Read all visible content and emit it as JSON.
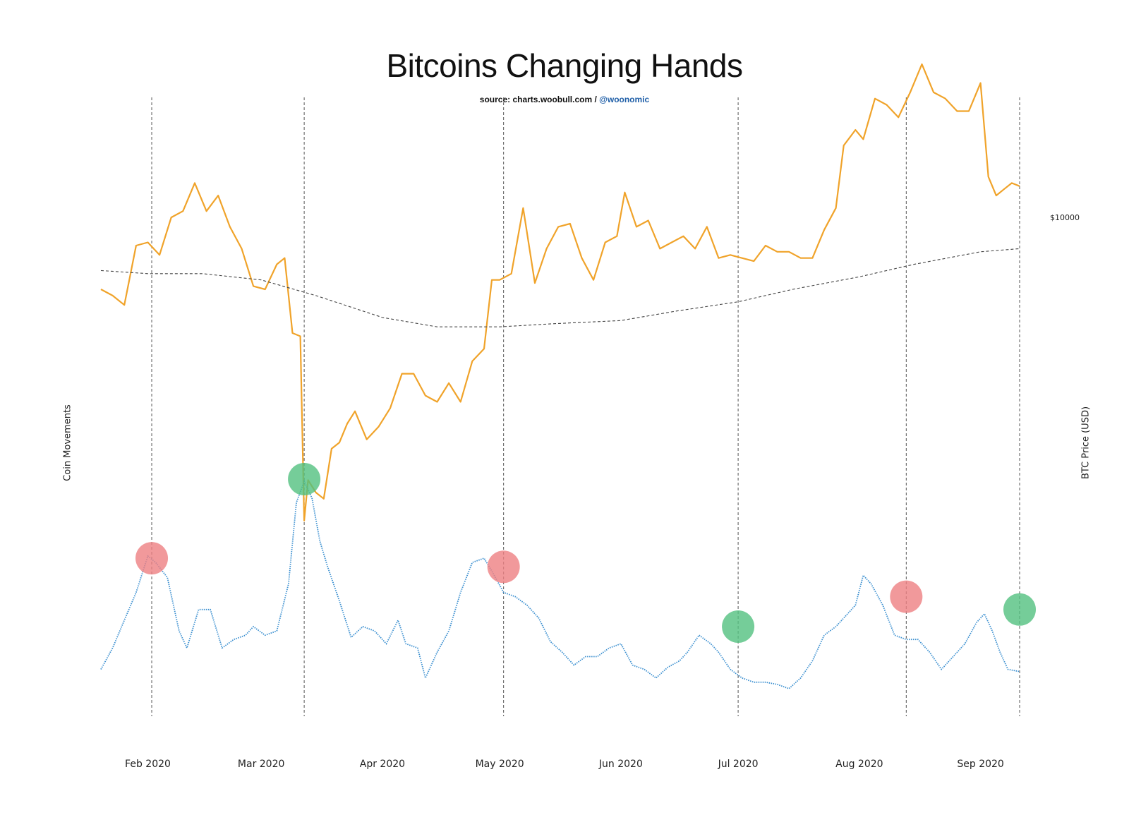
{
  "chart_data": {
    "type": "line",
    "title": "Bitcoins Changing Hands",
    "source_prefix": "source: charts.woobull.com / ",
    "source_handle": "@woonomic",
    "ylabel_left": "Coin Movements",
    "ylabel_right": "BTC Price (USD)",
    "y_right_ticks": [
      {
        "value": 10000,
        "label": "$10000"
      }
    ],
    "x_ticks": [
      {
        "date": "2020-02-01",
        "label": "Feb 2020"
      },
      {
        "date": "2020-03-01",
        "label": "Mar 2020"
      },
      {
        "date": "2020-04-01",
        "label": "Apr 2020"
      },
      {
        "date": "2020-05-01",
        "label": "May 2020"
      },
      {
        "date": "2020-06-01",
        "label": "Jun 2020"
      },
      {
        "date": "2020-07-01",
        "label": "Jul 2020"
      },
      {
        "date": "2020-08-01",
        "label": "Aug 2020"
      },
      {
        "date": "2020-09-01",
        "label": "Sep 2020"
      }
    ],
    "x_range": [
      "2020-01-20",
      "2020-09-11"
    ],
    "grid": false,
    "colors": {
      "price": "#f0a32a",
      "moving_average": "#444444",
      "coin_movements": "#3a8fd0",
      "marker_red": "#ee7f82",
      "marker_green": "#52c07f",
      "vline": "#555555"
    },
    "series": [
      {
        "key": "price",
        "axis": "right",
        "y_range": [
          4700,
          12600
        ],
        "points": [
          [
            "2020-01-20",
            8650
          ],
          [
            "2020-01-23",
            8550
          ],
          [
            "2020-01-26",
            8400
          ],
          [
            "2020-01-29",
            9350
          ],
          [
            "2020-02-01",
            9400
          ],
          [
            "2020-02-04",
            9200
          ],
          [
            "2020-02-07",
            9800
          ],
          [
            "2020-02-10",
            9900
          ],
          [
            "2020-02-13",
            10350
          ],
          [
            "2020-02-16",
            9900
          ],
          [
            "2020-02-19",
            10150
          ],
          [
            "2020-02-22",
            9650
          ],
          [
            "2020-02-25",
            9300
          ],
          [
            "2020-02-28",
            8700
          ],
          [
            "2020-03-02",
            8650
          ],
          [
            "2020-03-05",
            9050
          ],
          [
            "2020-03-07",
            9150
          ],
          [
            "2020-03-09",
            7950
          ],
          [
            "2020-03-11",
            7900
          ],
          [
            "2020-03-12",
            4950
          ],
          [
            "2020-03-13",
            5600
          ],
          [
            "2020-03-15",
            5400
          ],
          [
            "2020-03-17",
            5300
          ],
          [
            "2020-03-19",
            6100
          ],
          [
            "2020-03-21",
            6200
          ],
          [
            "2020-03-23",
            6500
          ],
          [
            "2020-03-25",
            6700
          ],
          [
            "2020-03-28",
            6250
          ],
          [
            "2020-03-31",
            6450
          ],
          [
            "2020-04-03",
            6750
          ],
          [
            "2020-04-06",
            7300
          ],
          [
            "2020-04-09",
            7300
          ],
          [
            "2020-04-12",
            6950
          ],
          [
            "2020-04-15",
            6850
          ],
          [
            "2020-04-18",
            7150
          ],
          [
            "2020-04-21",
            6850
          ],
          [
            "2020-04-24",
            7500
          ],
          [
            "2020-04-27",
            7700
          ],
          [
            "2020-04-29",
            8800
          ],
          [
            "2020-05-01",
            8800
          ],
          [
            "2020-05-04",
            8900
          ],
          [
            "2020-05-07",
            9950
          ],
          [
            "2020-05-10",
            8750
          ],
          [
            "2020-05-13",
            9300
          ],
          [
            "2020-05-16",
            9650
          ],
          [
            "2020-05-19",
            9700
          ],
          [
            "2020-05-22",
            9150
          ],
          [
            "2020-05-25",
            8800
          ],
          [
            "2020-05-28",
            9400
          ],
          [
            "2020-05-31",
            9500
          ],
          [
            "2020-06-02",
            10200
          ],
          [
            "2020-06-05",
            9650
          ],
          [
            "2020-06-08",
            9750
          ],
          [
            "2020-06-11",
            9300
          ],
          [
            "2020-06-14",
            9400
          ],
          [
            "2020-06-17",
            9500
          ],
          [
            "2020-06-20",
            9300
          ],
          [
            "2020-06-23",
            9650
          ],
          [
            "2020-06-26",
            9150
          ],
          [
            "2020-06-29",
            9200
          ],
          [
            "2020-07-02",
            9150
          ],
          [
            "2020-07-05",
            9100
          ],
          [
            "2020-07-08",
            9350
          ],
          [
            "2020-07-11",
            9250
          ],
          [
            "2020-07-14",
            9250
          ],
          [
            "2020-07-17",
            9150
          ],
          [
            "2020-07-20",
            9150
          ],
          [
            "2020-07-23",
            9600
          ],
          [
            "2020-07-26",
            9950
          ],
          [
            "2020-07-28",
            10950
          ],
          [
            "2020-07-31",
            11200
          ],
          [
            "2020-08-02",
            11050
          ],
          [
            "2020-08-05",
            11700
          ],
          [
            "2020-08-08",
            11600
          ],
          [
            "2020-08-11",
            11400
          ],
          [
            "2020-08-14",
            11800
          ],
          [
            "2020-08-17",
            12250
          ],
          [
            "2020-08-20",
            11800
          ],
          [
            "2020-08-23",
            11700
          ],
          [
            "2020-08-26",
            11500
          ],
          [
            "2020-08-29",
            11500
          ],
          [
            "2020-09-01",
            11950
          ],
          [
            "2020-09-03",
            10450
          ],
          [
            "2020-09-05",
            10150
          ],
          [
            "2020-09-07",
            10250
          ],
          [
            "2020-09-09",
            10350
          ],
          [
            "2020-09-11",
            10300
          ]
        ]
      },
      {
        "key": "moving_average",
        "axis": "right",
        "y_range": [
          4700,
          12600
        ],
        "points": [
          [
            "2020-01-20",
            8950
          ],
          [
            "2020-02-01",
            8900
          ],
          [
            "2020-02-15",
            8900
          ],
          [
            "2020-03-01",
            8800
          ],
          [
            "2020-03-15",
            8550
          ],
          [
            "2020-04-01",
            8200
          ],
          [
            "2020-04-15",
            8050
          ],
          [
            "2020-05-01",
            8050
          ],
          [
            "2020-05-15",
            8100
          ],
          [
            "2020-06-01",
            8150
          ],
          [
            "2020-06-15",
            8300
          ],
          [
            "2020-07-01",
            8450
          ],
          [
            "2020-07-15",
            8650
          ],
          [
            "2020-08-01",
            8850
          ],
          [
            "2020-08-15",
            9050
          ],
          [
            "2020-09-01",
            9250
          ],
          [
            "2020-09-11",
            9300
          ]
        ]
      },
      {
        "key": "coin_movements",
        "axis": "left",
        "y_range": [
          0,
          100
        ],
        "points": [
          [
            "2020-01-20",
            12
          ],
          [
            "2020-01-23",
            22
          ],
          [
            "2020-01-26",
            35
          ],
          [
            "2020-01-29",
            48
          ],
          [
            "2020-02-01",
            65
          ],
          [
            "2020-02-03",
            62
          ],
          [
            "2020-02-06",
            55
          ],
          [
            "2020-02-09",
            30
          ],
          [
            "2020-02-11",
            22
          ],
          [
            "2020-02-14",
            40
          ],
          [
            "2020-02-17",
            40
          ],
          [
            "2020-02-20",
            22
          ],
          [
            "2020-02-23",
            26
          ],
          [
            "2020-02-26",
            28
          ],
          [
            "2020-02-28",
            32
          ],
          [
            "2020-03-02",
            28
          ],
          [
            "2020-03-05",
            30
          ],
          [
            "2020-03-08",
            52
          ],
          [
            "2020-03-10",
            90
          ],
          [
            "2020-03-12",
            100
          ],
          [
            "2020-03-14",
            92
          ],
          [
            "2020-03-16",
            72
          ],
          [
            "2020-03-18",
            60
          ],
          [
            "2020-03-21",
            44
          ],
          [
            "2020-03-24",
            27
          ],
          [
            "2020-03-27",
            32
          ],
          [
            "2020-03-30",
            30
          ],
          [
            "2020-04-02",
            24
          ],
          [
            "2020-04-05",
            35
          ],
          [
            "2020-04-07",
            24
          ],
          [
            "2020-04-10",
            22
          ],
          [
            "2020-04-12",
            8
          ],
          [
            "2020-04-15",
            20
          ],
          [
            "2020-04-18",
            30
          ],
          [
            "2020-04-21",
            48
          ],
          [
            "2020-04-24",
            62
          ],
          [
            "2020-04-27",
            64
          ],
          [
            "2020-04-29",
            58
          ],
          [
            "2020-05-02",
            48
          ],
          [
            "2020-05-05",
            46
          ],
          [
            "2020-05-08",
            42
          ],
          [
            "2020-05-11",
            36
          ],
          [
            "2020-05-14",
            25
          ],
          [
            "2020-05-17",
            20
          ],
          [
            "2020-05-20",
            14
          ],
          [
            "2020-05-23",
            18
          ],
          [
            "2020-05-26",
            18
          ],
          [
            "2020-05-29",
            22
          ],
          [
            "2020-06-01",
            24
          ],
          [
            "2020-06-04",
            14
          ],
          [
            "2020-06-07",
            12
          ],
          [
            "2020-06-10",
            8
          ],
          [
            "2020-06-13",
            13
          ],
          [
            "2020-06-16",
            16
          ],
          [
            "2020-06-18",
            20
          ],
          [
            "2020-06-21",
            28
          ],
          [
            "2020-06-24",
            24
          ],
          [
            "2020-06-26",
            20
          ],
          [
            "2020-06-29",
            12
          ],
          [
            "2020-07-02",
            8
          ],
          [
            "2020-07-05",
            6
          ],
          [
            "2020-07-08",
            6
          ],
          [
            "2020-07-11",
            5
          ],
          [
            "2020-07-14",
            3
          ],
          [
            "2020-07-17",
            8
          ],
          [
            "2020-07-20",
            16
          ],
          [
            "2020-07-23",
            28
          ],
          [
            "2020-07-26",
            32
          ],
          [
            "2020-07-28",
            36
          ],
          [
            "2020-07-31",
            42
          ],
          [
            "2020-08-02",
            56
          ],
          [
            "2020-08-04",
            52
          ],
          [
            "2020-08-07",
            42
          ],
          [
            "2020-08-10",
            28
          ],
          [
            "2020-08-13",
            26
          ],
          [
            "2020-08-16",
            26
          ],
          [
            "2020-08-19",
            20
          ],
          [
            "2020-08-22",
            12
          ],
          [
            "2020-08-25",
            18
          ],
          [
            "2020-08-28",
            24
          ],
          [
            "2020-08-31",
            34
          ],
          [
            "2020-09-02",
            38
          ],
          [
            "2020-09-04",
            30
          ],
          [
            "2020-09-06",
            20
          ],
          [
            "2020-09-08",
            12
          ],
          [
            "2020-09-11",
            11
          ]
        ]
      }
    ],
    "markers": [
      {
        "date": "2020-02-02",
        "value": 64,
        "color": "red"
      },
      {
        "date": "2020-03-12",
        "value": 101,
        "color": "green"
      },
      {
        "date": "2020-05-02",
        "value": 60,
        "color": "red"
      },
      {
        "date": "2020-07-01",
        "value": 32,
        "color": "green"
      },
      {
        "date": "2020-08-13",
        "value": 46,
        "color": "red"
      },
      {
        "date": "2020-09-11",
        "value": 40,
        "color": "green"
      }
    ],
    "vlines": [
      "2020-02-02",
      "2020-03-12",
      "2020-05-02",
      "2020-07-01",
      "2020-08-13",
      "2020-09-11"
    ]
  }
}
